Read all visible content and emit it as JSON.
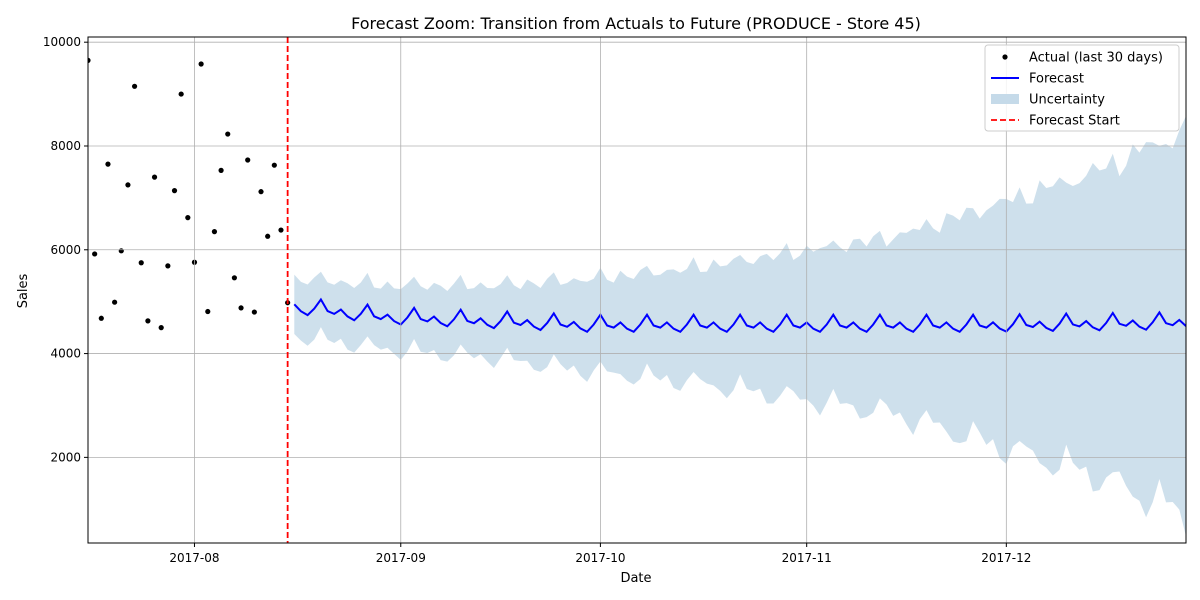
{
  "chart_data": {
    "type": "line",
    "title": "Forecast Zoom: Transition from Actuals to Future (PRODUCE - Store 45)",
    "xlabel": "Date",
    "ylabel": "Sales",
    "xlim": [
      "2017-07-16",
      "2017-12-28"
    ],
    "ylim": [
      350,
      10100
    ],
    "x_ticks": [
      "2017-08",
      "2017-09",
      "2017-10",
      "2017-11",
      "2017-12"
    ],
    "y_ticks": [
      2000,
      4000,
      6000,
      8000,
      10000
    ],
    "grid": true,
    "legend_position": "top-right",
    "forecast_start": "2017-08-15",
    "colors": {
      "actual": "#000000",
      "forecast": "#0000ff",
      "uncertainty": "#c5dae9",
      "forecast_start": "#ff0000",
      "grid": "#b0b0b0"
    },
    "series": [
      {
        "name": "Actual (last 30 days)",
        "kind": "points",
        "x": [
          "2017-07-16",
          "2017-07-17",
          "2017-07-18",
          "2017-07-19",
          "2017-07-20",
          "2017-07-21",
          "2017-07-22",
          "2017-07-23",
          "2017-07-24",
          "2017-07-25",
          "2017-07-26",
          "2017-07-27",
          "2017-07-28",
          "2017-07-29",
          "2017-07-30",
          "2017-07-31",
          "2017-08-01",
          "2017-08-02",
          "2017-08-03",
          "2017-08-04",
          "2017-08-05",
          "2017-08-06",
          "2017-08-07",
          "2017-08-08",
          "2017-08-09",
          "2017-08-10",
          "2017-08-11",
          "2017-08-12",
          "2017-08-13",
          "2017-08-14",
          "2017-08-15"
        ],
        "y": [
          9650,
          5920,
          4680,
          7650,
          4990,
          5980,
          7250,
          9150,
          5750,
          4630,
          7400,
          4500,
          5690,
          7140,
          9000,
          6620,
          5760,
          9580,
          4810,
          6350,
          7530,
          8230,
          5460,
          4880,
          7730,
          4800,
          7120,
          6260,
          7630,
          6380,
          4980
        ]
      },
      {
        "name": "Forecast",
        "kind": "line",
        "start": "2017-08-16",
        "step_days": 1,
        "weekly_pattern": [
          0,
          -120,
          -180,
          -40,
          150,
          -60,
          -100
        ],
        "trend": [
          [
            0,
            4950
          ],
          [
            14,
            4750
          ],
          [
            44,
            4600
          ],
          [
            74,
            4600
          ],
          [
            104,
            4600
          ],
          [
            134,
            4650
          ]
        ],
        "count": 135
      },
      {
        "name": "Uncertainty",
        "kind": "band",
        "start": "2017-08-16",
        "halfwidth": [
          [
            0,
            550
          ],
          [
            30,
            700
          ],
          [
            60,
            1100
          ],
          [
            90,
            1700
          ],
          [
            120,
            2900
          ],
          [
            134,
            3700
          ]
        ],
        "count": 135
      },
      {
        "name": "Forecast Start",
        "kind": "vline",
        "x": "2017-08-15"
      }
    ],
    "legend": [
      {
        "label": "Actual (last 30 days)",
        "marker": "dot"
      },
      {
        "label": "Forecast",
        "marker": "line"
      },
      {
        "label": "Uncertainty",
        "marker": "patch"
      },
      {
        "label": "Forecast Start",
        "marker": "dashed"
      }
    ]
  }
}
